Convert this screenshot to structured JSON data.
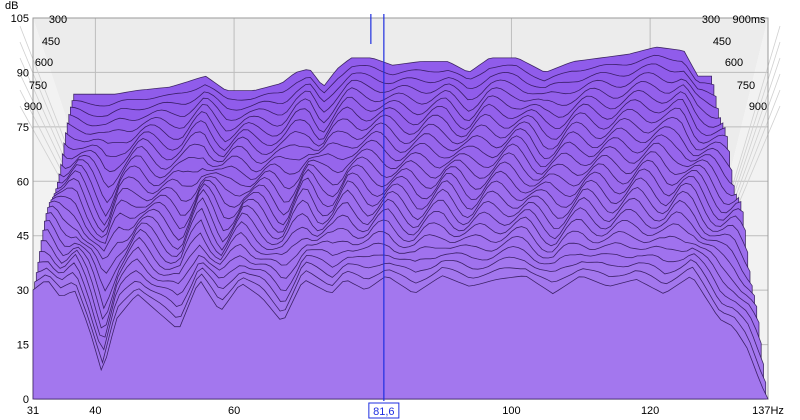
{
  "chart_data": {
    "type": "waterfall",
    "ylabel": "dB",
    "y_ticks": [
      "0",
      "15",
      "30",
      "45",
      "60",
      "75",
      "90",
      "105"
    ],
    "x_ticks": [
      "31",
      "40",
      "60",
      "100",
      "120",
      "137Hz"
    ],
    "time_ticks_left": [
      "300",
      "450",
      "600",
      "750",
      "900"
    ],
    "time_ticks_right": [
      "300",
      "900ms",
      "450",
      "600",
      "750",
      "900"
    ],
    "ylim": [
      0,
      105
    ],
    "xlim": [
      31,
      137
    ],
    "time_range_ms": [
      0,
      900
    ],
    "cursor": {
      "label": "81,6",
      "x": 81.6
    },
    "front_curve": {
      "x": [
        31,
        33,
        35,
        37,
        39,
        41,
        43,
        46,
        49,
        52,
        55,
        58,
        61,
        64,
        67,
        70,
        72,
        74,
        76,
        79,
        82,
        86,
        90,
        94,
        98,
        102,
        106,
        110,
        114,
        118,
        122,
        126,
        128,
        130,
        132,
        134,
        136,
        137
      ],
      "y": [
        30,
        33,
        28,
        30,
        20,
        7,
        22,
        29,
        24,
        19,
        33,
        24,
        32,
        28,
        21,
        33,
        31,
        29,
        33,
        30,
        34,
        29,
        34,
        31,
        33,
        34,
        29,
        34,
        31,
        33,
        29,
        34,
        28,
        22,
        20,
        14,
        4,
        0
      ]
    },
    "back_curve": {
      "x": [
        37,
        39,
        42,
        45,
        50,
        55,
        58,
        62,
        66,
        68,
        70,
        72,
        74,
        76,
        79,
        82,
        86,
        90,
        93,
        96,
        100,
        104,
        108,
        112,
        116,
        120,
        124,
        126
      ],
      "y": [
        84,
        84,
        84,
        85,
        86,
        89,
        85,
        85,
        87,
        90,
        91,
        86,
        91,
        94,
        94,
        92,
        93,
        93,
        90,
        94,
        94,
        90,
        93,
        94,
        95,
        97,
        96,
        89
      ]
    },
    "colors": {
      "fill": "#9266ee",
      "edge": "#2a1350",
      "wall": "#ececec",
      "grid": "#bdbdbd",
      "cursor": "#1f2fe0"
    }
  }
}
